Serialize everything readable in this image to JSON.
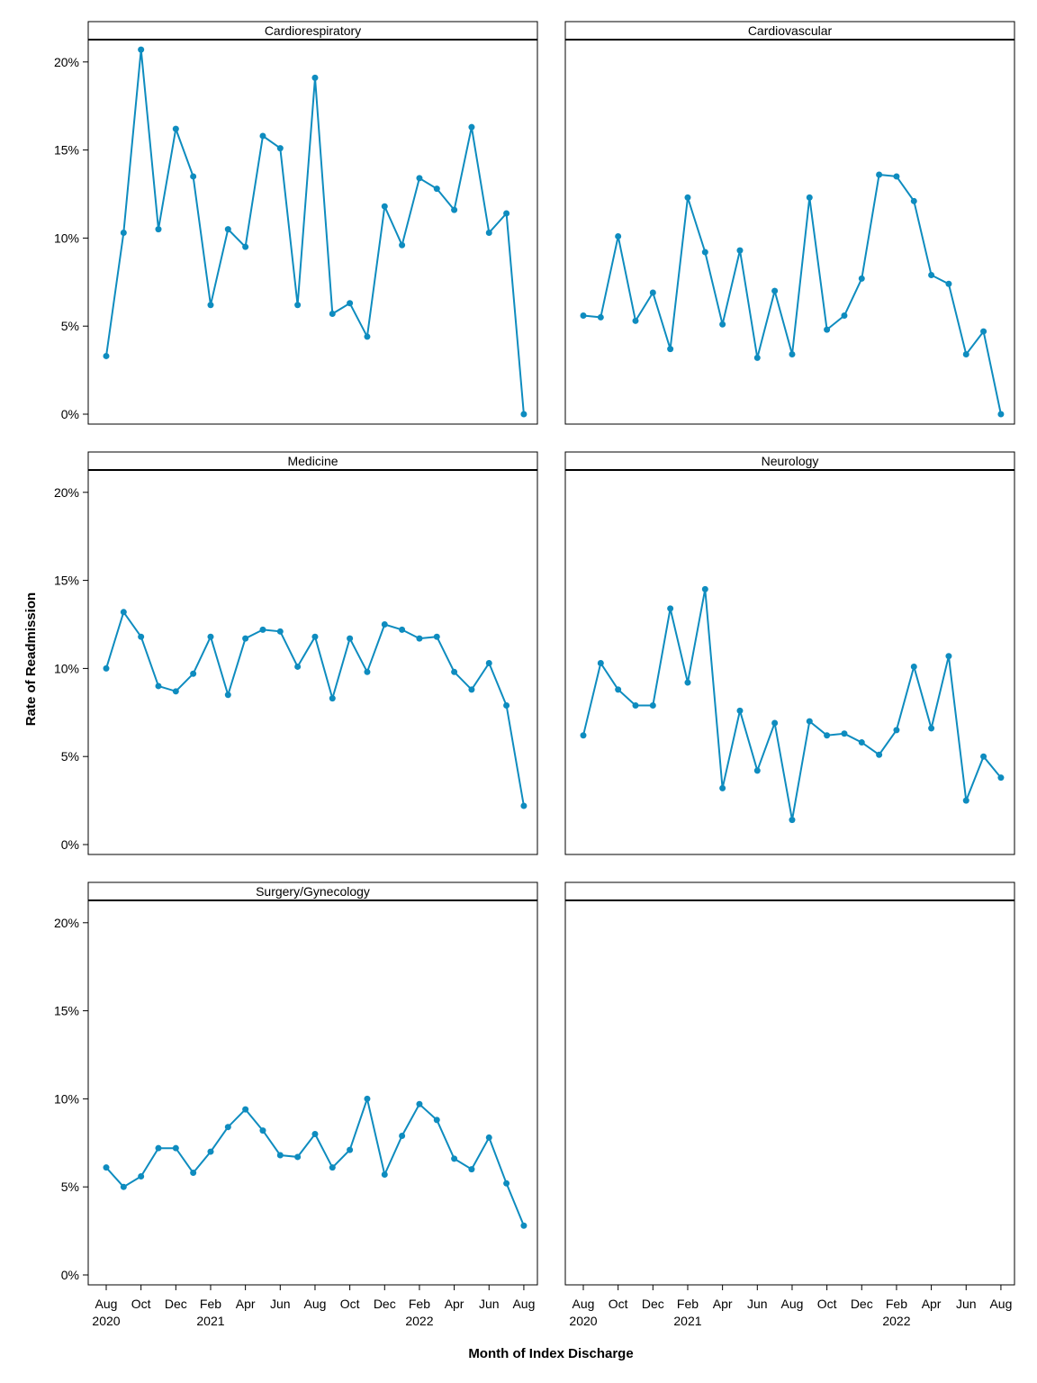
{
  "chart_data": {
    "type": "line",
    "xlabel": "Month of Index Discharge",
    "ylabel": "Rate of Readmission",
    "ylim": [
      0,
      21
    ],
    "y_ticks": [
      0,
      5,
      10,
      15,
      20
    ],
    "y_tick_labels": [
      "0%",
      "5%",
      "10%",
      "15%",
      "20%"
    ],
    "x": [
      "2020-08",
      "2020-09",
      "2020-10",
      "2020-11",
      "2020-12",
      "2021-01",
      "2021-02",
      "2021-03",
      "2021-04",
      "2021-05",
      "2021-06",
      "2021-07",
      "2021-08",
      "2021-09",
      "2021-10",
      "2021-11",
      "2021-12",
      "2022-01",
      "2022-02",
      "2022-03",
      "2022-04",
      "2022-05",
      "2022-06",
      "2022-07",
      "2022-08"
    ],
    "x_tick_months": [
      0,
      2,
      4,
      6,
      8,
      10,
      12,
      14,
      16,
      18,
      20,
      22,
      24
    ],
    "x_tick_labels": [
      "Aug",
      "Oct",
      "Dec",
      "Feb",
      "Apr",
      "Jun",
      "Aug",
      "Oct",
      "Dec",
      "Feb",
      "Apr",
      "Jun",
      "Aug"
    ],
    "x_year_labels": [
      {
        "month": 0,
        "label": "2020"
      },
      {
        "month": 6,
        "label": "2021"
      },
      {
        "month": 18,
        "label": "2022"
      }
    ],
    "series_color": "#0e8cbf",
    "grid": false,
    "panels": [
      {
        "title": "Cardiorespiratory",
        "values": [
          3.3,
          10.3,
          20.7,
          10.5,
          16.2,
          13.5,
          6.2,
          10.5,
          9.5,
          15.8,
          15.1,
          6.2,
          19.1,
          5.7,
          6.3,
          4.4,
          11.8,
          9.6,
          13.4,
          12.8,
          11.6,
          16.3,
          10.3,
          11.4,
          0.0
        ]
      },
      {
        "title": "Cardiovascular",
        "values": [
          5.6,
          5.5,
          10.1,
          5.3,
          6.9,
          3.7,
          12.3,
          9.2,
          5.1,
          9.3,
          3.2,
          7.0,
          3.4,
          12.3,
          4.8,
          5.6,
          7.7,
          13.6,
          13.5,
          12.1,
          7.9,
          7.4,
          3.4,
          4.7,
          0.0
        ]
      },
      {
        "title": "Medicine",
        "values": [
          10.0,
          13.2,
          11.8,
          9.0,
          8.7,
          9.7,
          11.8,
          8.5,
          11.7,
          12.2,
          12.1,
          10.1,
          11.8,
          8.3,
          11.7,
          9.8,
          12.5,
          12.2,
          11.7,
          11.8,
          9.8,
          8.8,
          10.3,
          7.9,
          2.2
        ]
      },
      {
        "title": "Neurology",
        "values": [
          6.2,
          10.3,
          8.8,
          7.9,
          7.9,
          13.4,
          9.2,
          14.5,
          3.2,
          7.6,
          4.2,
          6.9,
          1.4,
          7.0,
          6.2,
          6.3,
          5.8,
          5.1,
          6.5,
          10.1,
          6.6,
          10.7,
          2.5,
          5.0,
          3.8
        ]
      },
      {
        "title": "Surgery/Gynecology",
        "values": [
          6.1,
          5.0,
          5.6,
          7.2,
          7.2,
          5.8,
          7.0,
          8.4,
          9.4,
          8.2,
          6.8,
          6.7,
          8.0,
          6.1,
          7.1,
          10.0,
          5.7,
          7.9,
          9.7,
          8.8,
          6.6,
          6.0,
          7.8,
          5.2,
          2.8
        ]
      },
      {
        "title": "",
        "values": []
      }
    ]
  }
}
